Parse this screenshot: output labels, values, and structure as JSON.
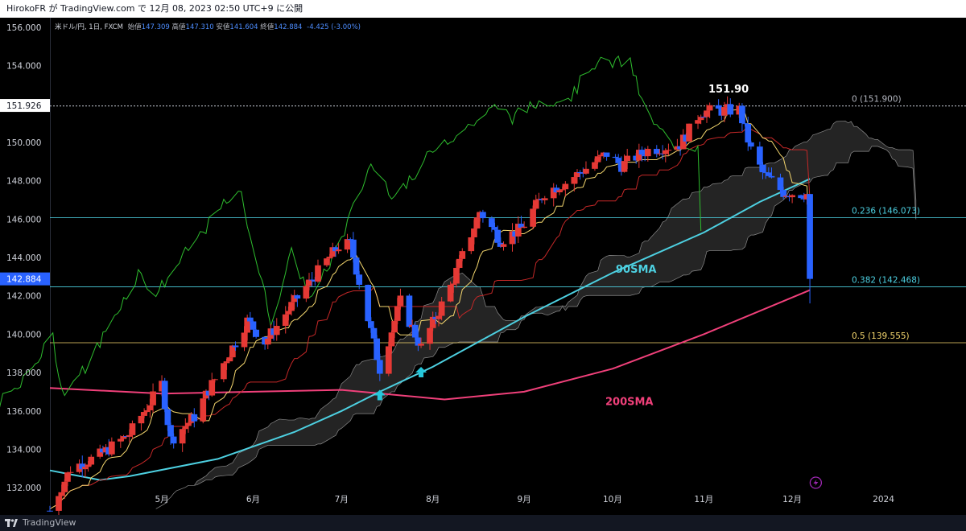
{
  "header": {
    "publish_line": "HirokoFR が TradingView.com で 12月 08, 2023 02:50 UTC+9 に公開"
  },
  "legend": {
    "symbol": "米ドル/円, 1日, FXCM",
    "open_label": "始値",
    "open": "147.309",
    "high_label": "高値",
    "high": "147.310",
    "low_label": "安値",
    "low": "141.604",
    "close_label": "終値",
    "close": "142.884",
    "change": "-4.425 (-3.00%)"
  },
  "footer": {
    "brand": "TradingView"
  },
  "colors": {
    "up": "#e53935",
    "down": "#2962ff",
    "sma90": "#4dd0e1",
    "sma200": "#f0407a",
    "tenkan": "#f5d76e",
    "kijun": "#c62828",
    "chikou": "#2ebd2e",
    "cloud": "#303030",
    "fib_236": "#4dd0e1",
    "fib_382": "#4dd0e1",
    "fib_05": "#f5d76e"
  },
  "annotations": {
    "peak_label": "151.90",
    "sma90_label": "90SMA",
    "sma200_label": "200SMA",
    "current_price_tag": "142.884",
    "peak_price_tag": "151.926"
  },
  "chart_data": {
    "type": "candlestick",
    "title": "米ドル/円, 1日, FXCM",
    "ylim": [
      131,
      156.5
    ],
    "y_ticks": [
      "132.000",
      "134.000",
      "136.000",
      "138.000",
      "140.000",
      "142.000",
      "144.000",
      "146.000",
      "148.000",
      "150.000",
      "152.000",
      "154.000",
      "156.000"
    ],
    "x_ticks": [
      "5月",
      "6月",
      "7月",
      "8月",
      "9月",
      "10月",
      "11月",
      "12月",
      "2024"
    ],
    "x_tick_dates": [
      "2023-05-01",
      "2023-06-01",
      "2023-07-01",
      "2023-08-01",
      "2023-09-01",
      "2023-10-01",
      "2023-11-01",
      "2023-12-01",
      "2024-01-01"
    ],
    "x_range": [
      "2023-03-24",
      "2024-01-29"
    ],
    "fib_levels": [
      {
        "label": "0 (151.900)",
        "value": 151.9
      },
      {
        "label": "0.236 (146.073)",
        "value": 146.073
      },
      {
        "label": "0.382 (142.468)",
        "value": 142.468
      },
      {
        "label": "0.5 (139.555)",
        "value": 139.555
      }
    ],
    "anchors": [
      {
        "date": "2023-03-24",
        "close": 130.8
      },
      {
        "date": "2023-03-31",
        "close": 133.0
      },
      {
        "date": "2023-04-10",
        "close": 133.7
      },
      {
        "date": "2023-04-20",
        "close": 134.8
      },
      {
        "date": "2023-05-01",
        "close": 137.4
      },
      {
        "date": "2023-05-04",
        "close": 134.5
      },
      {
        "date": "2023-05-12",
        "close": 135.7
      },
      {
        "date": "2023-05-22",
        "close": 138.5
      },
      {
        "date": "2023-05-30",
        "close": 140.7
      },
      {
        "date": "2023-06-05",
        "close": 139.6
      },
      {
        "date": "2023-06-16",
        "close": 141.9
      },
      {
        "date": "2023-06-30",
        "close": 144.6
      },
      {
        "date": "2023-07-04",
        "close": 144.7
      },
      {
        "date": "2023-07-14",
        "close": 138.2
      },
      {
        "date": "2023-07-21",
        "close": 141.7
      },
      {
        "date": "2023-07-28",
        "close": 139.3
      },
      {
        "date": "2023-08-07",
        "close": 142.5
      },
      {
        "date": "2023-08-17",
        "close": 146.4
      },
      {
        "date": "2023-08-24",
        "close": 144.9
      },
      {
        "date": "2023-08-31",
        "close": 145.5
      },
      {
        "date": "2023-09-08",
        "close": 147.4
      },
      {
        "date": "2023-09-15",
        "close": 147.9
      },
      {
        "date": "2023-09-29",
        "close": 149.4
      },
      {
        "date": "2023-10-04",
        "close": 148.8
      },
      {
        "date": "2023-10-13",
        "close": 149.6
      },
      {
        "date": "2023-10-24",
        "close": 149.9
      },
      {
        "date": "2023-10-31",
        "close": 151.6
      },
      {
        "date": "2023-11-13",
        "close": 151.7
      },
      {
        "date": "2023-11-17",
        "close": 149.6
      },
      {
        "date": "2023-11-21",
        "close": 148.4
      },
      {
        "date": "2023-11-28",
        "close": 147.4
      },
      {
        "date": "2023-12-06",
        "close": 147.3
      },
      {
        "date": "2023-12-07",
        "close": 142.884
      }
    ],
    "sma90": [
      {
        "date": "2023-03-24",
        "value": 132.9
      },
      {
        "date": "2023-04-10",
        "value": 132.4
      },
      {
        "date": "2023-04-20",
        "value": 132.6
      },
      {
        "date": "2023-05-20",
        "value": 133.5
      },
      {
        "date": "2023-06-15",
        "value": 134.9
      },
      {
        "date": "2023-07-01",
        "value": 136.0
      },
      {
        "date": "2023-07-14",
        "value": 137.0
      },
      {
        "date": "2023-08-01",
        "value": 138.3
      },
      {
        "date": "2023-09-01",
        "value": 140.9
      },
      {
        "date": "2023-10-01",
        "value": 143.2
      },
      {
        "date": "2023-11-01",
        "value": 145.3
      },
      {
        "date": "2023-11-20",
        "value": 146.9
      },
      {
        "date": "2023-12-07",
        "value": 148.1
      }
    ],
    "sma200": [
      {
        "date": "2023-03-24",
        "value": 137.2
      },
      {
        "date": "2023-05-01",
        "value": 136.9
      },
      {
        "date": "2023-07-01",
        "value": 137.1
      },
      {
        "date": "2023-08-05",
        "value": 136.6
      },
      {
        "date": "2023-09-01",
        "value": 137.0
      },
      {
        "date": "2023-10-01",
        "value": 138.2
      },
      {
        "date": "2023-11-01",
        "value": 140.0
      },
      {
        "date": "2023-12-07",
        "value": 142.3
      }
    ]
  }
}
